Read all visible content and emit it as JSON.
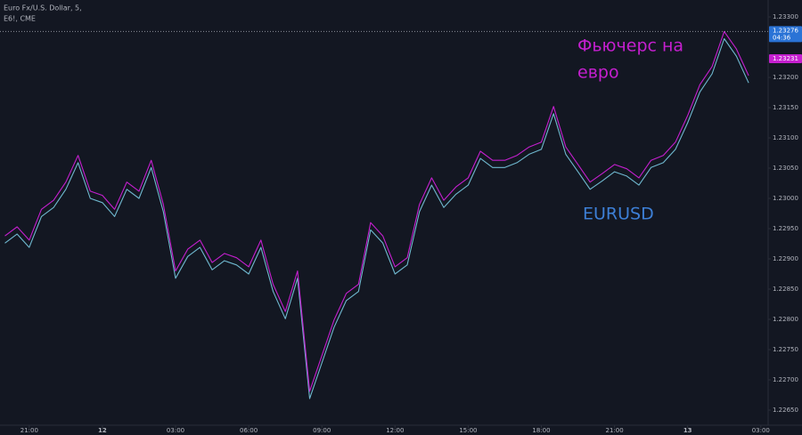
{
  "chart_data": {
    "type": "line",
    "title": "Euro Fx/U.S. Dollar, 5,",
    "subtitle": "E6!, CME",
    "annotations": [
      {
        "text": "Фьючерс на",
        "color": "#c51fcf"
      },
      {
        "text": "евро",
        "color": "#c51fcf"
      },
      {
        "text": "EURUSD",
        "color": "#3d7fd6"
      }
    ],
    "x": [
      -1,
      -0.5,
      0,
      0.5,
      1,
      1.5,
      2,
      2.5,
      3,
      3.5,
      4,
      4.5,
      5,
      5.5,
      6,
      6.5,
      7,
      7.5,
      8,
      8.5,
      9,
      9.5,
      10,
      10.5,
      11,
      11.5,
      12,
      12.5,
      13,
      13.5,
      14,
      14.5,
      15,
      15.5,
      16,
      16.5,
      17,
      17.5,
      18,
      18.5,
      19,
      19.5,
      20,
      20.5,
      21,
      21.5,
      22,
      22.5,
      23,
      23.5,
      24,
      24.5,
      25,
      25.5,
      26,
      26.5,
      27,
      27.5,
      28,
      28.5,
      29,
      29.5
    ],
    "series": [
      {
        "name": "EURUSD",
        "color": "#6fb8cf",
        "values": [
          1.22926,
          1.22941,
          1.22919,
          1.2297,
          1.22985,
          1.23015,
          1.23059,
          1.23,
          1.22993,
          1.2297,
          1.23015,
          1.23,
          1.23051,
          1.22978,
          1.22868,
          1.22904,
          1.22919,
          1.22882,
          1.22897,
          1.2289,
          1.22875,
          1.22919,
          1.22846,
          1.22801,
          1.22868,
          1.22669,
          1.22728,
          1.22787,
          1.22831,
          1.22846,
          1.22948,
          1.22926,
          1.22875,
          1.2289,
          1.22978,
          1.23022,
          1.22985,
          1.23007,
          1.23022,
          1.23066,
          1.23051,
          1.23051,
          1.23059,
          1.23073,
          1.23081,
          1.2314,
          1.23073,
          1.23044,
          1.23015,
          1.23029,
          1.23044,
          1.23037,
          1.23022,
          1.23051,
          1.23059,
          1.23081,
          1.23125,
          1.23176,
          1.23206,
          1.23264,
          1.23235,
          1.23191
        ]
      },
      {
        "name": "Euro Fx/U.S. Dollar",
        "color": "#c51fcf",
        "values": [
          1.22938,
          1.22953,
          1.22931,
          1.22982,
          1.22997,
          1.23027,
          1.23071,
          1.23012,
          1.23005,
          1.22982,
          1.23027,
          1.23012,
          1.23063,
          1.2299,
          1.2288,
          1.22916,
          1.22931,
          1.22894,
          1.22909,
          1.22902,
          1.22887,
          1.22931,
          1.22858,
          1.22813,
          1.2288,
          1.22681,
          1.2274,
          1.22799,
          1.22843,
          1.22858,
          1.2296,
          1.22938,
          1.22887,
          1.22902,
          1.2299,
          1.23034,
          1.22997,
          1.23019,
          1.23034,
          1.23078,
          1.23063,
          1.23063,
          1.23071,
          1.23085,
          1.23093,
          1.23152,
          1.23085,
          1.23056,
          1.23027,
          1.23041,
          1.23056,
          1.23049,
          1.23034,
          1.23063,
          1.23071,
          1.23093,
          1.23137,
          1.23188,
          1.23218,
          1.23276,
          1.23247,
          1.23203
        ]
      }
    ],
    "xlim": [
      -1.2,
      30.3
    ],
    "xticks": [
      {
        "value": 0,
        "label": "21:00"
      },
      {
        "value": 3,
        "label": "12"
      },
      {
        "value": 6,
        "label": "03:00"
      },
      {
        "value": 9,
        "label": "06:00"
      },
      {
        "value": 12,
        "label": "09:00"
      },
      {
        "value": 15,
        "label": "12:00"
      },
      {
        "value": 18,
        "label": "15:00"
      },
      {
        "value": 21,
        "label": "18:00"
      },
      {
        "value": 24,
        "label": "21:00"
      },
      {
        "value": 27,
        "label": "13"
      },
      {
        "value": 30,
        "label": "03:00"
      }
    ],
    "ylim": [
      1.22625,
      1.23328
    ],
    "yticks": [
      {
        "value": 1.233,
        "label": "1.23300"
      },
      {
        "value": 1.232,
        "label": "1.23200"
      },
      {
        "value": 1.2315,
        "label": "1.23150"
      },
      {
        "value": 1.231,
        "label": "1.23100"
      },
      {
        "value": 1.2305,
        "label": "1.23050"
      },
      {
        "value": 1.23,
        "label": "1.23000"
      },
      {
        "value": 1.2295,
        "label": "1.22950"
      },
      {
        "value": 1.229,
        "label": "1.22900"
      },
      {
        "value": 1.2285,
        "label": "1.22850"
      },
      {
        "value": 1.228,
        "label": "1.22800"
      },
      {
        "value": 1.2275,
        "label": "1.22750"
      },
      {
        "value": 1.227,
        "label": "1.22700"
      },
      {
        "value": 1.2265,
        "label": "1.22650"
      }
    ],
    "last_price": {
      "value": 1.23276,
      "label": "1.23276",
      "color": "#2a73d6"
    },
    "countdown": "04:36",
    "compare_price": {
      "value": 1.23231,
      "label": "1.23231",
      "color": "#c51fcf"
    },
    "grid": false
  }
}
